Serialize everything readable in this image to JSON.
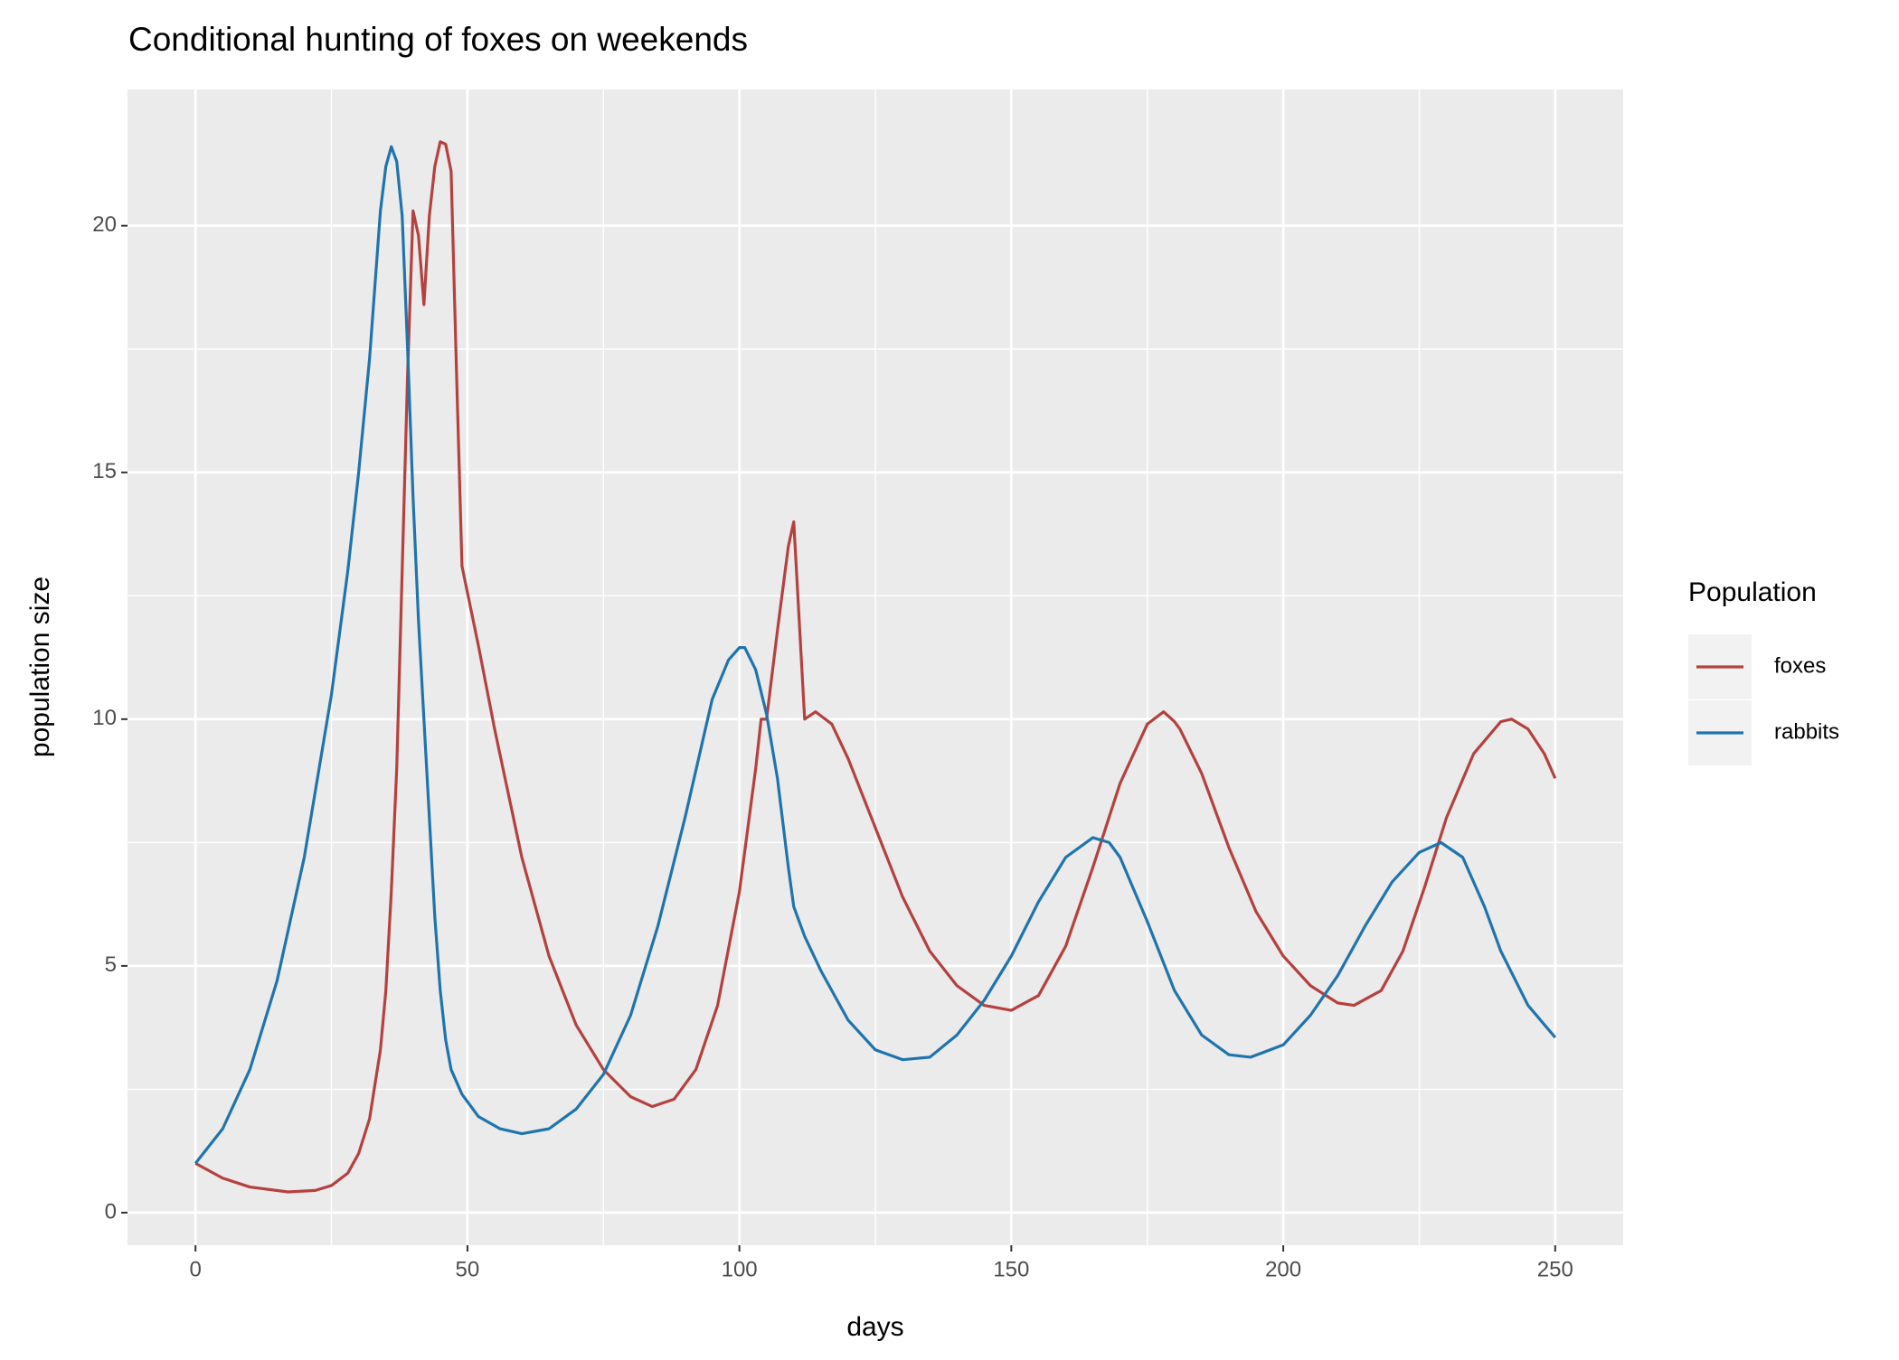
{
  "chart_data": {
    "type": "line",
    "title": "Conditional hunting of foxes on weekends",
    "x_label": "days",
    "y_label": "population size",
    "legend_title": "Population",
    "legend_position": "right",
    "grid": true,
    "panel_color": "#ebebeb",
    "xlim": [
      -12.5,
      262.5
    ],
    "ylim": [
      -0.66,
      22.76
    ],
    "xticks": [
      0,
      50,
      100,
      150,
      200,
      250
    ],
    "yticks": [
      0,
      5,
      10,
      15,
      20
    ],
    "x_minor_ticks": [
      25,
      75,
      125,
      175,
      225
    ],
    "y_minor_ticks": [
      2.5,
      7.5,
      12.5,
      17.5
    ],
    "series": [
      {
        "name": "foxes",
        "color": "#b5413f",
        "x": [
          0,
          5,
          10,
          17,
          22,
          25,
          28,
          30,
          32,
          34,
          35,
          36,
          37,
          38,
          39,
          40,
          41,
          42,
          43,
          44,
          45,
          46,
          47,
          48,
          49,
          52,
          55,
          60,
          65,
          70,
          75,
          80,
          84,
          88,
          92,
          96,
          100,
          103,
          104,
          105,
          107,
          109,
          110,
          111,
          112,
          114,
          117,
          120,
          125,
          130,
          135,
          140,
          145,
          150,
          155,
          160,
          165,
          170,
          175,
          178,
          180,
          181,
          185,
          190,
          195,
          200,
          205,
          210,
          213,
          218,
          222,
          226,
          230,
          235,
          240,
          242,
          245,
          248,
          250
        ],
        "values": [
          1.0,
          0.7,
          0.52,
          0.42,
          0.45,
          0.55,
          0.8,
          1.2,
          1.9,
          3.3,
          4.5,
          6.5,
          9,
          13,
          17,
          20.3,
          19.8,
          18.4,
          20.2,
          21.2,
          21.7,
          21.65,
          21.1,
          17,
          13.1,
          11.5,
          9.8,
          7.2,
          5.2,
          3.8,
          2.9,
          2.35,
          2.15,
          2.3,
          2.9,
          4.2,
          6.5,
          9,
          10,
          10,
          11.8,
          13.5,
          14,
          12,
          10,
          10.15,
          9.9,
          9.2,
          7.8,
          6.4,
          5.3,
          4.6,
          4.2,
          4.1,
          4.4,
          5.4,
          7,
          8.7,
          9.9,
          10.15,
          9.95,
          9.8,
          8.9,
          7.4,
          6.1,
          5.2,
          4.6,
          4.25,
          4.2,
          4.5,
          5.3,
          6.6,
          8,
          9.3,
          9.95,
          10,
          9.8,
          9.3,
          8.8
        ]
      },
      {
        "name": "rabbits",
        "color": "#1f74ae",
        "x": [
          0,
          5,
          10,
          15,
          20,
          25,
          28,
          30,
          32,
          34,
          35,
          36,
          37,
          38,
          39,
          40,
          41,
          42,
          43,
          44,
          45,
          46,
          47,
          49,
          52,
          56,
          60,
          65,
          70,
          75,
          80,
          85,
          90,
          95,
          98,
          100,
          101,
          103,
          105,
          107,
          109,
          110,
          111,
          112,
          115,
          120,
          125,
          130,
          135,
          140,
          145,
          150,
          155,
          160,
          165,
          168,
          170,
          175,
          180,
          185,
          190,
          194,
          200,
          205,
          210,
          215,
          220,
          225,
          229,
          233,
          237,
          240,
          245,
          250
        ],
        "values": [
          1.0,
          1.7,
          2.9,
          4.7,
          7.2,
          10.5,
          13,
          15,
          17.3,
          20.3,
          21.2,
          21.6,
          21.3,
          20.2,
          17.5,
          14.5,
          12,
          10,
          8,
          6,
          4.5,
          3.5,
          2.9,
          2.4,
          1.95,
          1.7,
          1.6,
          1.7,
          2.1,
          2.8,
          4,
          5.8,
          8,
          10.4,
          11.2,
          11.45,
          11.45,
          11,
          10.1,
          8.8,
          7,
          6.2,
          5.9,
          5.6,
          4.9,
          3.9,
          3.3,
          3.1,
          3.15,
          3.6,
          4.3,
          5.2,
          6.3,
          7.2,
          7.6,
          7.5,
          7.2,
          5.9,
          4.5,
          3.6,
          3.2,
          3.15,
          3.4,
          4,
          4.8,
          5.8,
          6.7,
          7.3,
          7.5,
          7.2,
          6.2,
          5.3,
          4.2,
          3.55
        ]
      }
    ]
  }
}
